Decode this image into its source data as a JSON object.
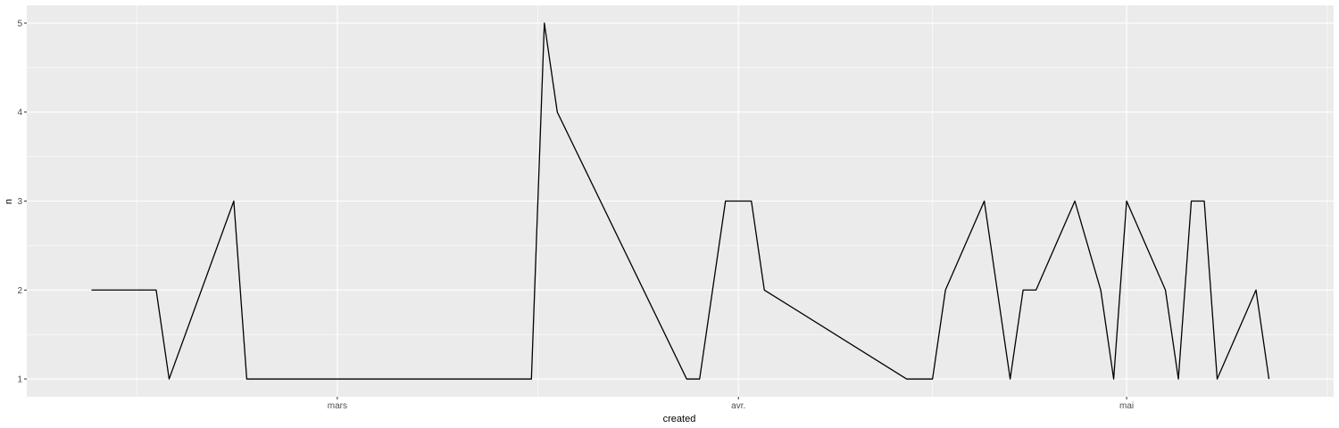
{
  "chart_data": {
    "type": "line",
    "xlabel": "created",
    "ylabel": "n",
    "x_ticks": [
      {
        "date": "2023-03-01",
        "label": "mars"
      },
      {
        "date": "2023-04-01",
        "label": "avr."
      },
      {
        "date": "2023-05-01",
        "label": "mai"
      }
    ],
    "y_ticks": [
      1,
      2,
      3,
      4,
      5
    ],
    "xlim": [
      "2023-02-05",
      "2023-05-17"
    ],
    "ylim": [
      0.8,
      5.2
    ],
    "grid": true,
    "colors": {
      "panel": "#ebebeb",
      "grid": "#ffffff",
      "line": "#000000"
    },
    "series": [
      {
        "points": [
          [
            "2023-02-10",
            2
          ],
          [
            "2023-02-15",
            2
          ],
          [
            "2023-02-16",
            1
          ],
          [
            "2023-02-21",
            3
          ],
          [
            "2023-02-22",
            1
          ],
          [
            "2023-03-15",
            1
          ],
          [
            "2023-03-16",
            1
          ],
          [
            "2023-03-17",
            5
          ],
          [
            "2023-03-18",
            4
          ],
          [
            "2023-03-28",
            1
          ],
          [
            "2023-03-29",
            1
          ],
          [
            "2023-03-31",
            3
          ],
          [
            "2023-04-02",
            3
          ],
          [
            "2023-04-03",
            2
          ],
          [
            "2023-04-14",
            1
          ],
          [
            "2023-04-16",
            1
          ],
          [
            "2023-04-17",
            2
          ],
          [
            "2023-04-20",
            3
          ],
          [
            "2023-04-22",
            1
          ],
          [
            "2023-04-23",
            2
          ],
          [
            "2023-04-24",
            2
          ],
          [
            "2023-04-27",
            3
          ],
          [
            "2023-04-29",
            2
          ],
          [
            "2023-04-30",
            1
          ],
          [
            "2023-05-01",
            3
          ],
          [
            "2023-05-04",
            2
          ],
          [
            "2023-05-05",
            1
          ],
          [
            "2023-05-06",
            3
          ],
          [
            "2023-05-07",
            3
          ],
          [
            "2023-05-08",
            1
          ],
          [
            "2023-05-11",
            2
          ],
          [
            "2023-05-12",
            1
          ]
        ]
      }
    ]
  }
}
